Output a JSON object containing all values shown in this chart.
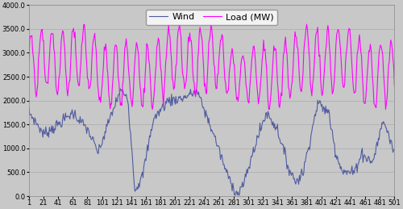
{
  "n": 501,
  "yticks": [
    0.0,
    500.0,
    1000.0,
    1500.0,
    2000.0,
    2500.0,
    3000.0,
    3500.0,
    4000.0
  ],
  "xtick_step": 20,
  "xlim": [
    1,
    501
  ],
  "ylim": [
    0.0,
    4000.0
  ],
  "wind_color": "#4F5BA0",
  "load_color": "#FF00FF",
  "plot_bg_color": "#C8C8C8",
  "fig_bg_color": "#C8C8C8",
  "wind_label": "Wind",
  "load_label": "Load (MW)",
  "wind_lw": 0.8,
  "load_lw": 0.8,
  "legend_fontsize": 8,
  "tick_fontsize": 6,
  "grid_color": "#AAAAAA",
  "grid_lw": 0.5
}
